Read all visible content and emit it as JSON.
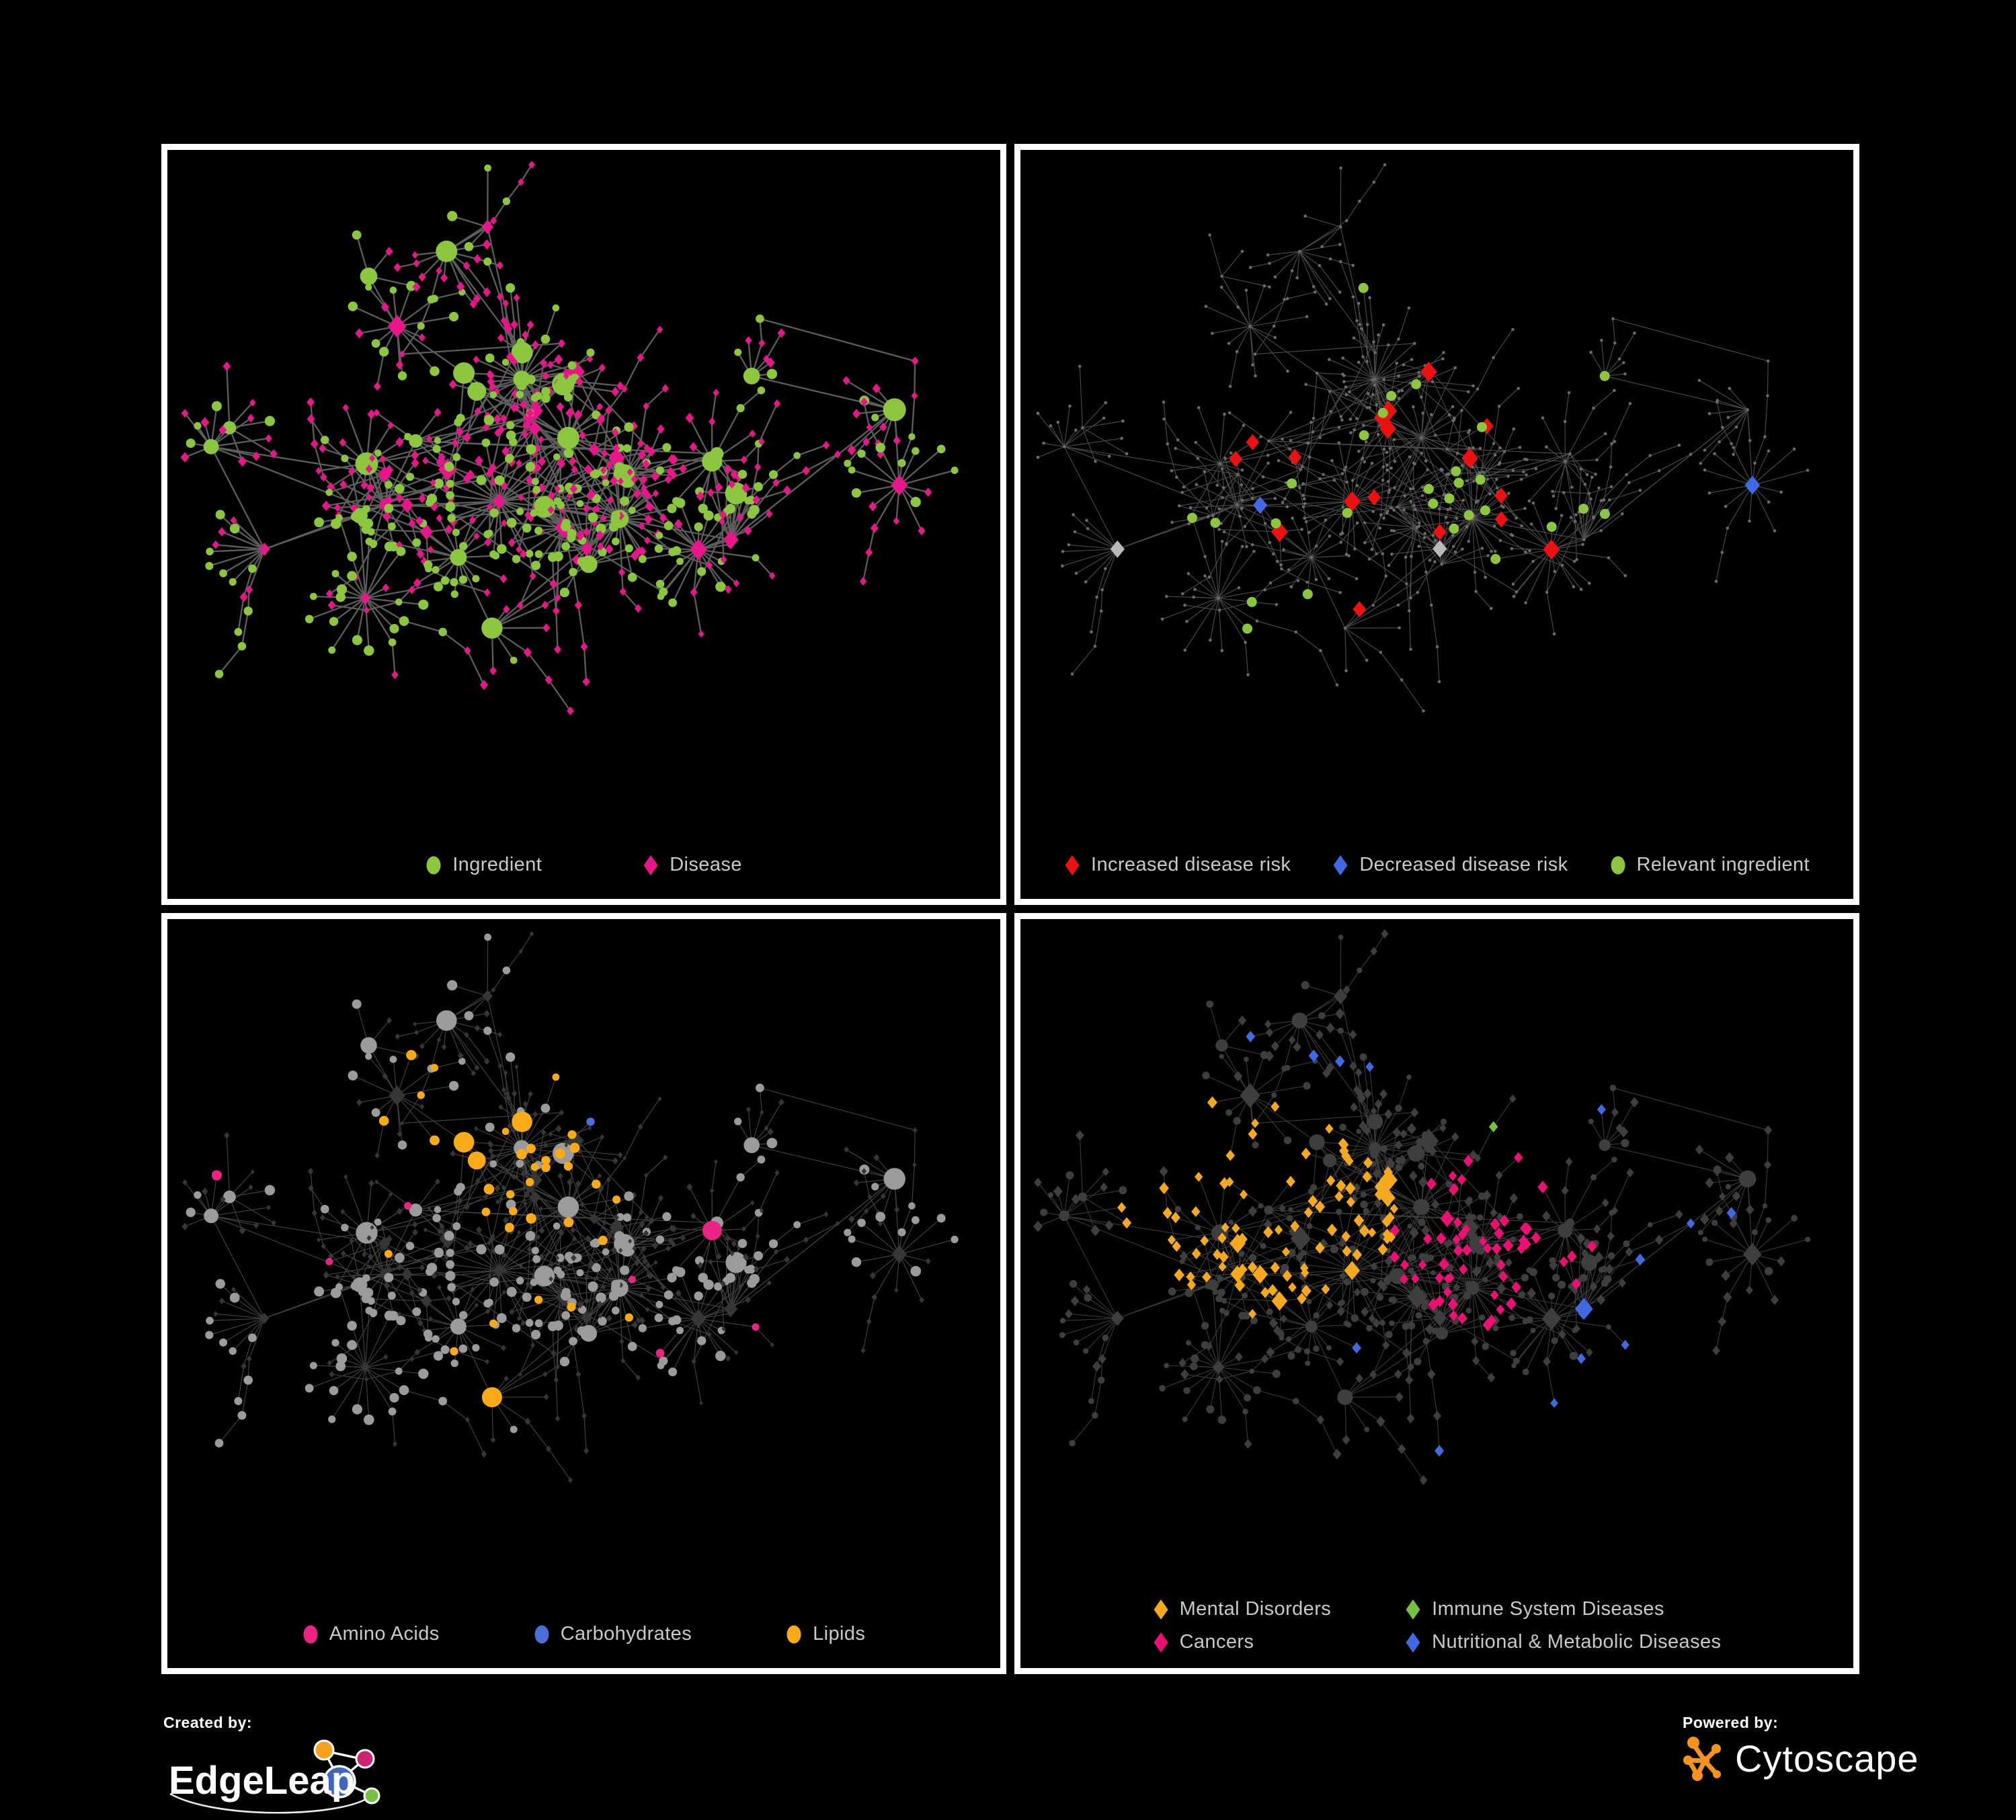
{
  "branding": {
    "created_by": "Created by:",
    "edgeleap": "EdgeLeap",
    "powered_by": "Powered by:",
    "cytoscape": "Cytoscape"
  },
  "network": {
    "type": "network",
    "views": 4,
    "description": "One ingredient-disease association network rendered in four styled views",
    "node_shapes": {
      "ingredient": "circle",
      "disease": "diamond"
    },
    "approx_nodes": 740,
    "approx_edges": 800,
    "background": "#000000",
    "frame_color": "#FFFFFF"
  },
  "panels": [
    {
      "id": "ingredient-disease",
      "legend": [
        {
          "label": "Ingredient",
          "shape": "circle",
          "color": "#8CC63F"
        },
        {
          "label": "Disease",
          "shape": "diamond",
          "color": "#E8158B"
        }
      ],
      "style": {
        "edge": "#6E6E6E",
        "edge_width": 2.3,
        "edge_opacity": 0.85,
        "ingredient": "#8CC63F",
        "disease": "#E8158B"
      }
    },
    {
      "id": "disease-risk",
      "legend": [
        {
          "label": "Increased disease risk",
          "shape": "diamond",
          "color": "#EE1111"
        },
        {
          "label": "Decreased disease risk",
          "shape": "diamond",
          "color": "#4169E1"
        },
        {
          "label": "Relevant ingredient",
          "shape": "circle",
          "color": "#8CC63F"
        }
      ],
      "style": {
        "edge": "#5F5F5F",
        "edge_width": 1.1,
        "edge_opacity": 0.8,
        "base": "#6A6A6A",
        "base_size": 2.3,
        "increased": "#EE1111",
        "decreased": "#4169E1",
        "other_association": "#B9B9B9",
        "relevant": "#8CC63F"
      }
    },
    {
      "id": "macronutrients",
      "legend": [
        {
          "label": "Amino Acids",
          "shape": "circle",
          "color": "#EC2384"
        },
        {
          "label": "Carbohydrates",
          "shape": "circle",
          "color": "#4A6FD8"
        },
        {
          "label": "Lipids",
          "shape": "circle",
          "color": "#F9AB17"
        }
      ],
      "style": {
        "edge": "#979797",
        "edge_width": 1.1,
        "edge_opacity": 0.45,
        "ingredient_base": "#9B9B9B",
        "disease_base": "#363636",
        "amino_acids": "#EC2384",
        "carbohydrates": "#4A6FD8",
        "lipids": "#F9AB17"
      }
    },
    {
      "id": "disease-categories",
      "legend": [
        {
          "label": "Mental Disorders",
          "shape": "diamond",
          "color": "#F5A91F"
        },
        {
          "label": "Immune System Diseases",
          "shape": "diamond",
          "color": "#76C043"
        },
        {
          "label": "Cancers",
          "shape": "diamond",
          "color": "#EC1075"
        },
        {
          "label": "Nutritional & Metabolic Diseases",
          "shape": "diamond",
          "color": "#4169E1"
        }
      ],
      "style": {
        "edge": "#9E9E9E",
        "edge_width": 1.0,
        "edge_opacity": 0.4,
        "base": "#3E3E3E",
        "mental_disorders": "#F5A91F",
        "immune_system": "#76C043",
        "cancers": "#EC1075",
        "nutritional_metabolic": "#4169E1"
      }
    }
  ],
  "logo_colors": {
    "edgeleap_orange": "#F9A11B",
    "edgeleap_magenta": "#CE2370",
    "edgeleap_blue": "#4066C0",
    "edgeleap_green": "#77C043",
    "cytoscape_orange": "#F6921E"
  }
}
